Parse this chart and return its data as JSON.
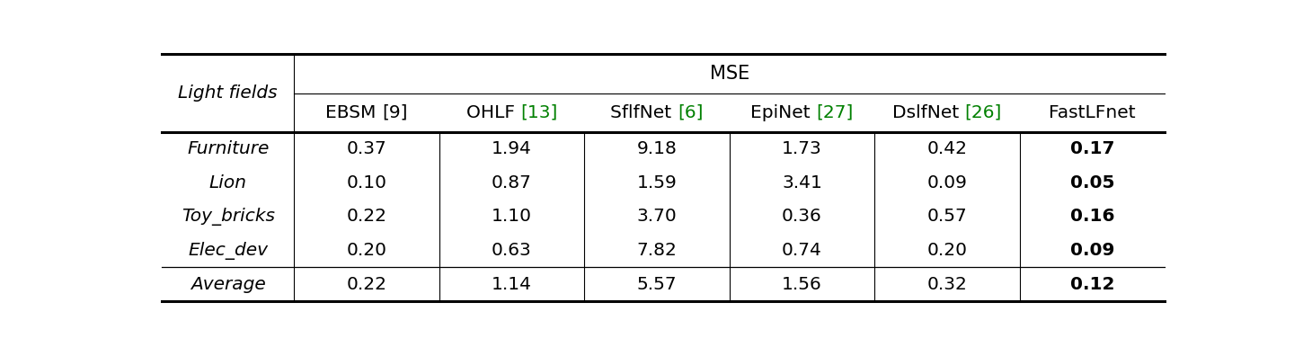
{
  "title": "MSE",
  "col_header_left": "Light fields",
  "citation_parts": [
    [
      [
        "EBSM ",
        "black"
      ],
      [
        "[9]",
        "black"
      ]
    ],
    [
      [
        "OHLF ",
        "black"
      ],
      [
        "[13]",
        "green"
      ]
    ],
    [
      [
        "SflfNet ",
        "black"
      ],
      [
        "[6]",
        "green"
      ]
    ],
    [
      [
        "EpiNet ",
        "black"
      ],
      [
        "[27]",
        "green"
      ]
    ],
    [
      [
        "DslfNet ",
        "black"
      ],
      [
        "[26]",
        "green"
      ]
    ],
    [
      [
        "FastLFnet",
        "black"
      ]
    ]
  ],
  "row_labels": [
    "Furniture",
    "Lion",
    "Toy_bricks",
    "Elec_dev",
    "Average"
  ],
  "data": [
    [
      "0.37",
      "1.94",
      "9.18",
      "1.73",
      "0.42",
      "0.17"
    ],
    [
      "0.10",
      "0.87",
      "1.59",
      "3.41",
      "0.09",
      "0.05"
    ],
    [
      "0.22",
      "1.10",
      "3.70",
      "0.36",
      "0.57",
      "0.16"
    ],
    [
      "0.20",
      "0.63",
      "7.82",
      "0.74",
      "0.20",
      "0.09"
    ],
    [
      "0.22",
      "1.14",
      "5.57",
      "1.56",
      "0.32",
      "0.12"
    ]
  ],
  "bold_col": 5,
  "average_row": 4,
  "bg_color": "#ffffff",
  "font_size": 14.5,
  "header_font_size": 14.5,
  "title_font_size": 15
}
